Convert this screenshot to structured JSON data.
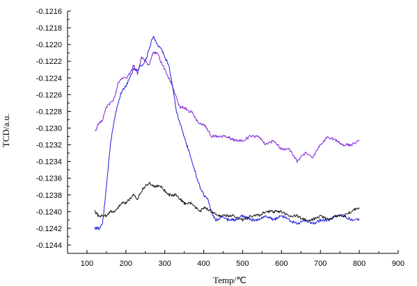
{
  "chart_data": {
    "type": "line",
    "title": "",
    "xlabel": "Temp/℃",
    "ylabel": "TCD/a.u.",
    "xlim": [
      50,
      900
    ],
    "ylim": [
      -0.1245,
      -0.1216
    ],
    "x_ticks": [
      100,
      200,
      300,
      400,
      500,
      600,
      700,
      800,
      900
    ],
    "x_tick_labels": [
      "100",
      "200",
      "300",
      "400",
      "500",
      "600",
      "700",
      "800",
      "900"
    ],
    "y_ticks": [
      -0.1216,
      -0.1218,
      -0.122,
      -0.1222,
      -0.1224,
      -0.1226,
      -0.1228,
      -0.123,
      -0.1232,
      -0.1234,
      -0.1236,
      -0.1238,
      -0.124,
      -0.1242,
      -0.1244
    ],
    "y_tick_labels": [
      "-0.1216",
      "-0.1218",
      "-0.1220",
      "-0.1222",
      "-0.1224",
      "-0.1226",
      "-0.1228",
      "-0.1230",
      "-0.1232",
      "-0.1234",
      "-0.1236",
      "-0.1238",
      "-0.1240",
      "-0.1242",
      "-0.1244"
    ],
    "grid": false,
    "legend": "none",
    "series": [
      {
        "color": "#7b1fd6",
        "x": [
          120,
          130,
          140,
          150,
          160,
          170,
          180,
          190,
          200,
          210,
          220,
          230,
          240,
          250,
          260,
          270,
          280,
          290,
          300,
          310,
          320,
          330,
          340,
          350,
          360,
          370,
          380,
          390,
          400,
          420,
          440,
          460,
          480,
          500,
          520,
          540,
          560,
          580,
          600,
          620,
          640,
          660,
          680,
          700,
          720,
          740,
          760,
          780,
          800
        ],
        "y": [
          -0.12305,
          -0.12295,
          -0.1229,
          -0.12275,
          -0.1227,
          -0.12265,
          -0.12245,
          -0.1224,
          -0.1224,
          -0.12235,
          -0.12225,
          -0.12235,
          -0.12215,
          -0.1222,
          -0.12225,
          -0.1221,
          -0.1221,
          -0.1222,
          -0.1223,
          -0.1224,
          -0.1225,
          -0.12265,
          -0.12275,
          -0.12275,
          -0.1228,
          -0.1228,
          -0.1229,
          -0.12295,
          -0.12295,
          -0.1231,
          -0.1231,
          -0.1231,
          -0.12315,
          -0.12315,
          -0.1231,
          -0.1231,
          -0.1232,
          -0.12315,
          -0.12325,
          -0.12325,
          -0.1234,
          -0.1233,
          -0.12335,
          -0.1232,
          -0.1231,
          -0.12315,
          -0.1232,
          -0.1232,
          -0.12315
        ]
      },
      {
        "color": "#1a1adf",
        "x": [
          120,
          130,
          140,
          150,
          160,
          170,
          180,
          190,
          200,
          210,
          220,
          230,
          240,
          250,
          260,
          270,
          280,
          290,
          300,
          310,
          320,
          330,
          340,
          350,
          360,
          370,
          380,
          390,
          400,
          410,
          420,
          430,
          440,
          450,
          460,
          480,
          500,
          520,
          540,
          560,
          580,
          600,
          620,
          640,
          660,
          680,
          700,
          720,
          740,
          760,
          780,
          800
        ],
        "y": [
          -0.1242,
          -0.1242,
          -0.12415,
          -0.1237,
          -0.1232,
          -0.1229,
          -0.1227,
          -0.12255,
          -0.1225,
          -0.1224,
          -0.1223,
          -0.1223,
          -0.12225,
          -0.1222,
          -0.12205,
          -0.1219,
          -0.122,
          -0.12205,
          -0.12215,
          -0.12225,
          -0.1225,
          -0.1228,
          -0.12295,
          -0.1231,
          -0.12325,
          -0.1234,
          -0.12355,
          -0.1237,
          -0.1238,
          -0.12385,
          -0.124,
          -0.1241,
          -0.1241,
          -0.12405,
          -0.1241,
          -0.1241,
          -0.12405,
          -0.1241,
          -0.1241,
          -0.12405,
          -0.1241,
          -0.12405,
          -0.1241,
          -0.12415,
          -0.1241,
          -0.12415,
          -0.1241,
          -0.1241,
          -0.12405,
          -0.12405,
          -0.1241,
          -0.1241
        ]
      },
      {
        "color": "#111111",
        "x": [
          120,
          130,
          140,
          150,
          160,
          170,
          180,
          190,
          200,
          210,
          220,
          230,
          240,
          250,
          260,
          270,
          280,
          290,
          300,
          310,
          320,
          330,
          340,
          350,
          360,
          370,
          380,
          390,
          400,
          420,
          440,
          460,
          480,
          500,
          520,
          540,
          560,
          580,
          600,
          620,
          640,
          660,
          680,
          700,
          720,
          740,
          760,
          780,
          800
        ],
        "y": [
          -0.124,
          -0.12405,
          -0.12405,
          -0.12405,
          -0.124,
          -0.124,
          -0.12395,
          -0.1239,
          -0.1239,
          -0.12385,
          -0.1238,
          -0.12385,
          -0.12375,
          -0.1237,
          -0.12365,
          -0.1237,
          -0.1237,
          -0.1237,
          -0.12375,
          -0.1238,
          -0.1238,
          -0.1238,
          -0.12385,
          -0.1239,
          -0.1239,
          -0.1239,
          -0.12395,
          -0.124,
          -0.12395,
          -0.124,
          -0.12405,
          -0.12405,
          -0.12405,
          -0.1241,
          -0.12405,
          -0.12405,
          -0.124,
          -0.124,
          -0.124,
          -0.12405,
          -0.12405,
          -0.1241,
          -0.1241,
          -0.12405,
          -0.1241,
          -0.12405,
          -0.12405,
          -0.124,
          -0.12395
        ]
      }
    ]
  }
}
